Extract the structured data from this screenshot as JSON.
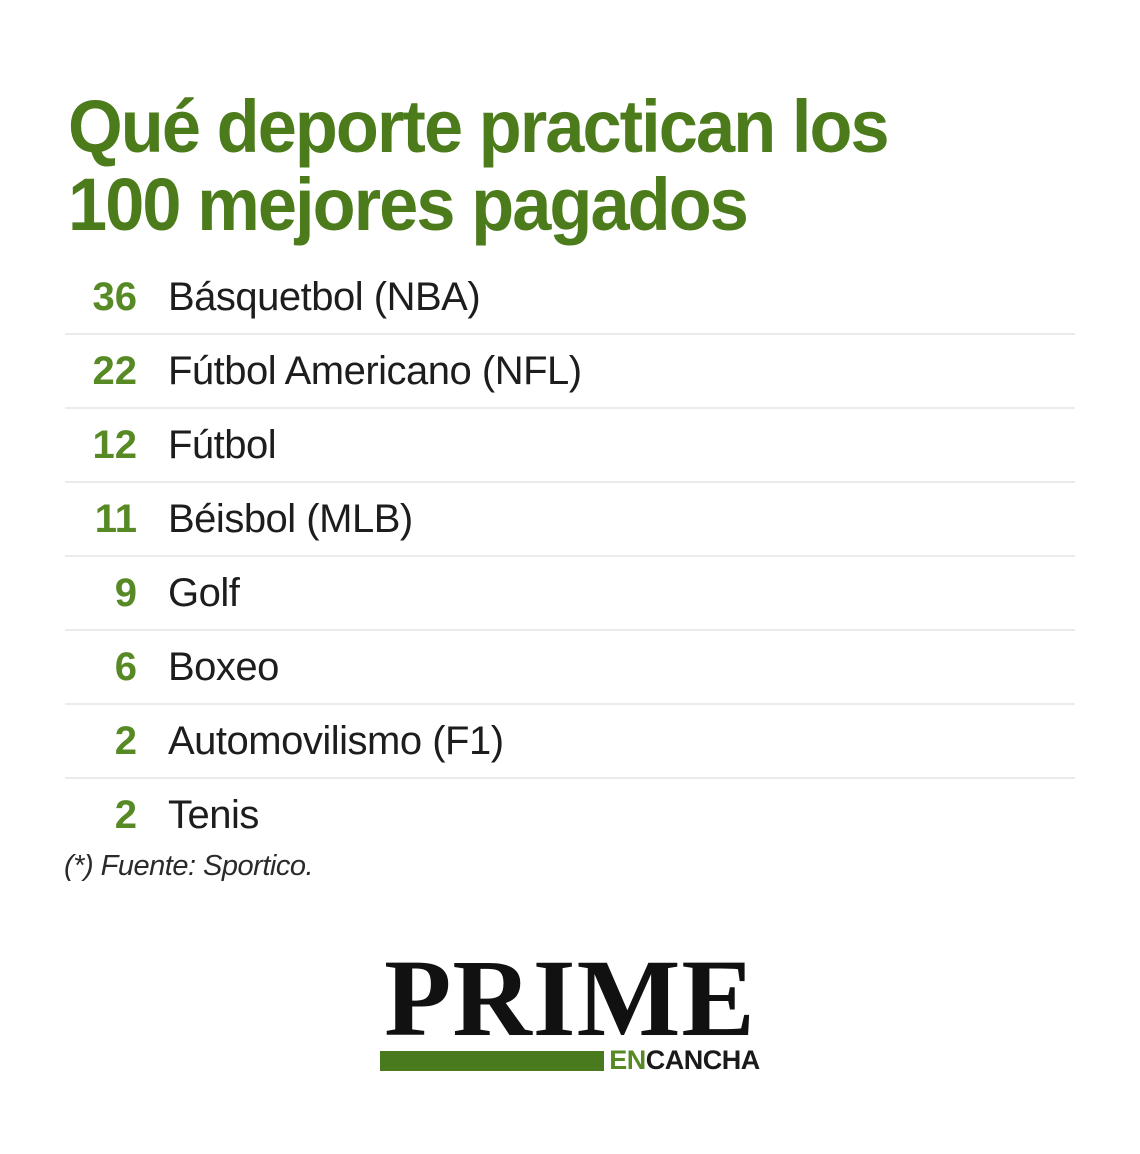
{
  "header": {
    "title_lines": [
      "Qué deporte practican los",
      "100 mejores pagados"
    ],
    "title_full": "Qué deporte practican los 100 mejores pagados"
  },
  "chart_data": {
    "type": "table",
    "title": "Qué deporte practican los 100 mejores pagados",
    "categories": [
      "Básquetbol (NBA)",
      "Fútbol Americano (NFL)",
      "Fútbol",
      "Béisbol (MLB)",
      "Golf",
      "Boxeo",
      "Automovilismo (F1)",
      "Tenis"
    ],
    "values": [
      36,
      22,
      12,
      11,
      9,
      6,
      2,
      2
    ],
    "value_total": 100,
    "source_note": "(*) Fuente: Sportico.",
    "layout": "ranked list, green values right-aligned in left column, separator rules between rows"
  },
  "list": {
    "rows": [
      {
        "value": "36",
        "label": "Básquetbol (NBA)"
      },
      {
        "value": "22",
        "label": "Fútbol Americano (NFL)"
      },
      {
        "value": "12",
        "label": "Fútbol"
      },
      {
        "value": "11",
        "label": "Béisbol (MLB)"
      },
      {
        "value": "9",
        "label": "Golf"
      },
      {
        "value": "6",
        "label": "Boxeo"
      },
      {
        "value": "2",
        "label": "Automovilismo (F1)"
      },
      {
        "value": "2",
        "label": "Tenis"
      }
    ]
  },
  "footnote": {
    "text": "(*) Fuente: Sportico."
  },
  "logo": {
    "wordmark": "PRIME",
    "tagline_en": "EN",
    "tagline_cancha": "CANCHA"
  },
  "colors": {
    "title_green": "#4b7b1b",
    "number_green": "#578a24",
    "bar_green": "#4a7a1e",
    "label_text": "#1d1d1d",
    "separator": "#ebebeb",
    "background": "#ffffff"
  }
}
